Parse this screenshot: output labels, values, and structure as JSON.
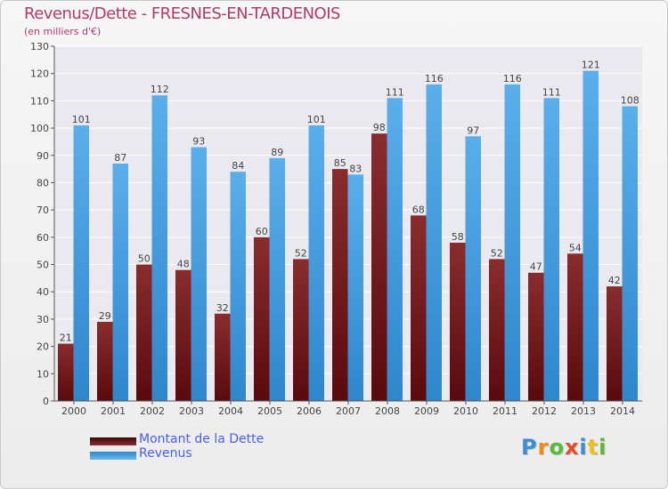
{
  "title": "Revenus/Dette - FRESNES-EN-TARDENOIS",
  "subtitle": "(en milliers d'€)",
  "brand": "Proxiti",
  "chart_data": {
    "type": "bar",
    "title": "Revenus/Dette - FRESNES-EN-TARDENOIS",
    "ylabel": "(en milliers d'€)",
    "xlabel": "",
    "ylim": [
      0,
      130
    ],
    "yticks": [
      0,
      10,
      20,
      30,
      40,
      50,
      60,
      70,
      80,
      90,
      100,
      110,
      120,
      130
    ],
    "grid": true,
    "legend_position": "bottom-left",
    "categories": [
      "2000",
      "2001",
      "2002",
      "2003",
      "2004",
      "2005",
      "2006",
      "2007",
      "2008",
      "2009",
      "2010",
      "2011",
      "2012",
      "2013",
      "2014"
    ],
    "series": [
      {
        "name": "Montant de la Dette",
        "color": "#7a1e22",
        "values": [
          21,
          29,
          50,
          48,
          32,
          60,
          52,
          85,
          98,
          68,
          58,
          52,
          47,
          54,
          42
        ]
      },
      {
        "name": "Revenus",
        "color": "#3d97dd",
        "values": [
          101,
          87,
          112,
          93,
          84,
          89,
          101,
          83,
          111,
          116,
          97,
          116,
          111,
          121,
          108
        ]
      }
    ]
  }
}
